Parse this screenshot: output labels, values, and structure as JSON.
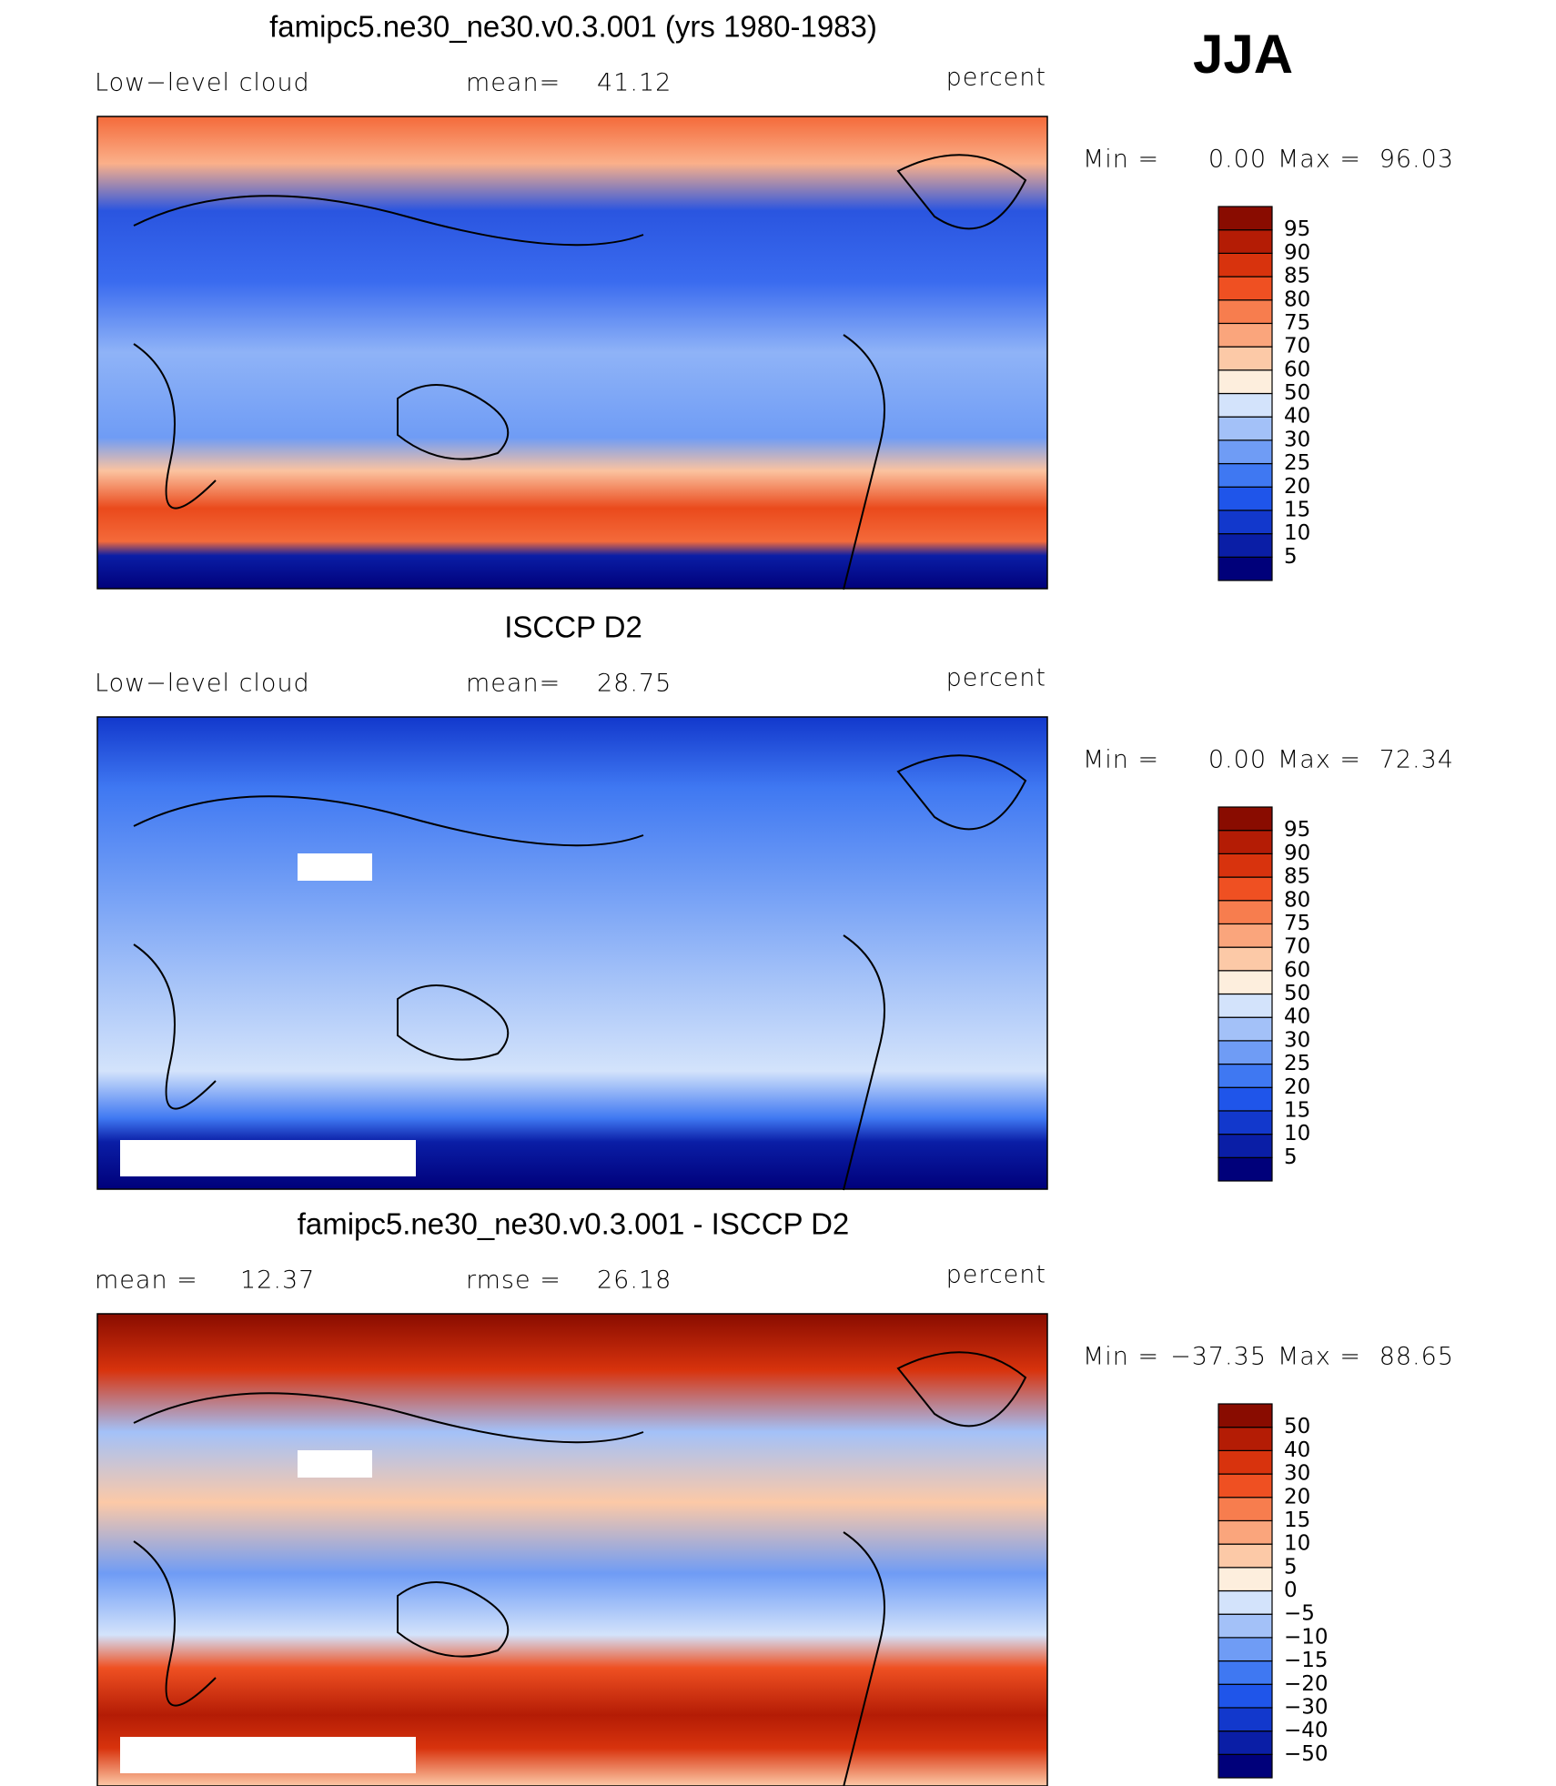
{
  "season": "JJA",
  "panels": [
    {
      "title": "famipc5.ne30_ne30.v0.3.001 (yrs 1980-1983)",
      "stats": [
        {
          "label": "Low−level cloud"
        },
        {
          "label": "mean=",
          "value": "41.12"
        }
      ],
      "units": "percent",
      "min_label": "Min =",
      "min": "0.00",
      "max_label": "Max =",
      "max": "96.03",
      "levels": [
        "5",
        "10",
        "15",
        "20",
        "25",
        "30",
        "40",
        "50",
        "60",
        "70",
        "75",
        "80",
        "85",
        "90",
        "95"
      ],
      "colors": [
        "#00007a",
        "#0a1ea6",
        "#1238cc",
        "#1f55ea",
        "#3f78f2",
        "#6f9cf5",
        "#a3c1f8",
        "#d3e3fb",
        "#fdeedd",
        "#fcc9a7",
        "#faa57c",
        "#f77d4e",
        "#ef5022",
        "#d8330d",
        "#b41c05",
        "#890c00"
      ]
    },
    {
      "title": "ISCCP D2",
      "stats": [
        {
          "label": "Low−level cloud"
        },
        {
          "label": "mean=",
          "value": "28.75"
        }
      ],
      "units": "percent",
      "min_label": "Min =",
      "min": "0.00",
      "max_label": "Max =",
      "max": "72.34",
      "levels": [
        "5",
        "10",
        "15",
        "20",
        "25",
        "30",
        "40",
        "50",
        "60",
        "70",
        "75",
        "80",
        "85",
        "90",
        "95"
      ],
      "colors": [
        "#00007a",
        "#0a1ea6",
        "#1238cc",
        "#1f55ea",
        "#3f78f2",
        "#6f9cf5",
        "#a3c1f8",
        "#d3e3fb",
        "#fdeedd",
        "#fcc9a7",
        "#faa57c",
        "#f77d4e",
        "#ef5022",
        "#d8330d",
        "#b41c05",
        "#890c00"
      ]
    },
    {
      "title": "famipc5.ne30_ne30.v0.3.001 - ISCCP D2",
      "stats": [
        {
          "label": "mean =",
          "value": "12.37"
        },
        {
          "label": "rmse =",
          "value": "26.18"
        }
      ],
      "units": "percent",
      "min_label": "Min =",
      "min": "−37.35",
      "max_label": "Max =",
      "max": "88.65",
      "levels": [
        "−50",
        "−40",
        "−30",
        "−20",
        "−15",
        "−10",
        "−5",
        "0",
        "5",
        "10",
        "15",
        "20",
        "30",
        "40",
        "50"
      ],
      "colors": [
        "#00007a",
        "#0a1ea6",
        "#1238cc",
        "#1f55ea",
        "#3f78f2",
        "#6f9cf5",
        "#a3c1f8",
        "#d3e3fb",
        "#fdeedd",
        "#fcc9a7",
        "#faa57c",
        "#f77d4e",
        "#ef5022",
        "#d8330d",
        "#b41c05",
        "#890c00"
      ]
    }
  ]
}
